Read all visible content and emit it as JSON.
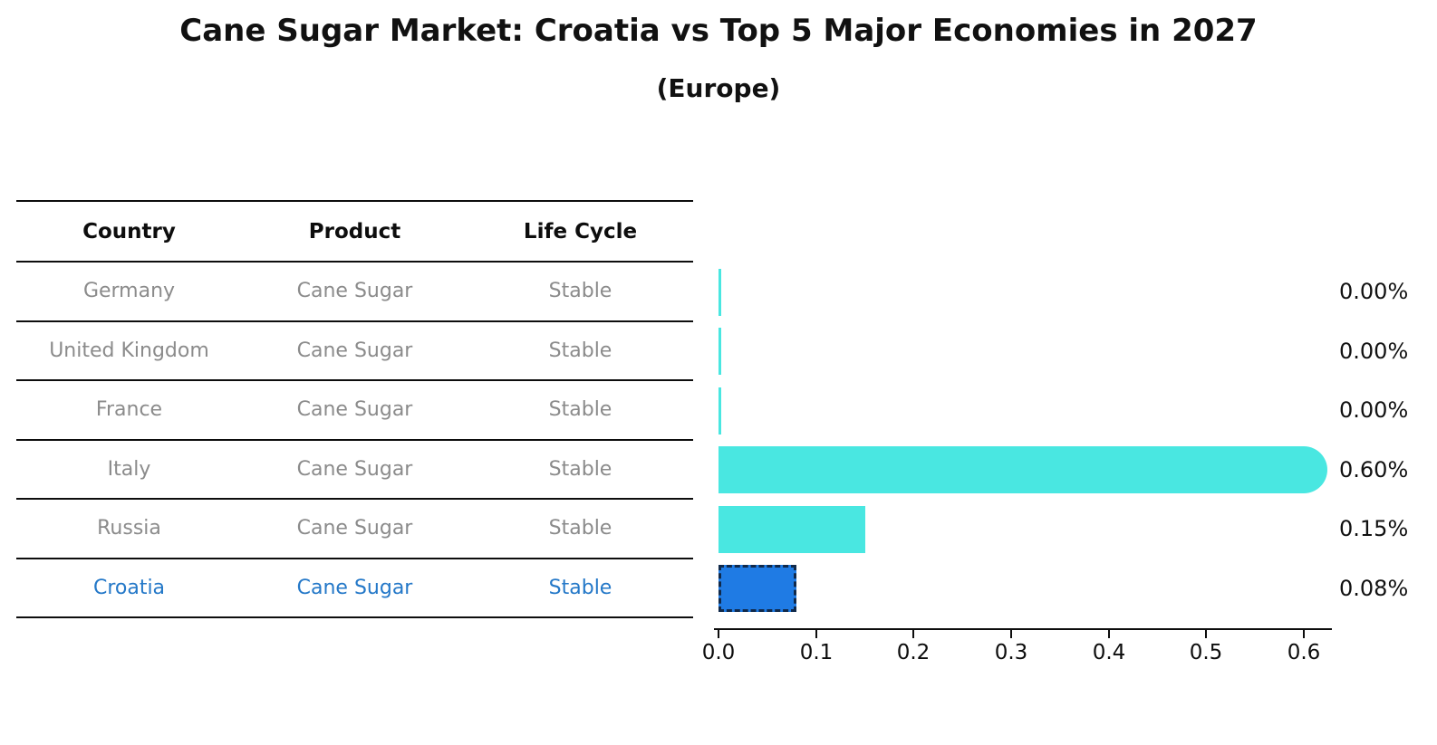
{
  "title": "Cane Sugar Market: Croatia vs Top 5 Major Economies in 2027",
  "subtitle": "(Europe)",
  "table": {
    "headers": [
      "Country",
      "Product",
      "Life Cycle"
    ],
    "rows": [
      {
        "country": "Germany",
        "product": "Cane Sugar",
        "life_cycle": "Stable"
      },
      {
        "country": "United Kingdom",
        "product": "Cane Sugar",
        "life_cycle": "Stable"
      },
      {
        "country": "France",
        "product": "Cane Sugar",
        "life_cycle": "Stable"
      },
      {
        "country": "Italy",
        "product": "Cane Sugar",
        "life_cycle": "Stable"
      },
      {
        "country": "Russia",
        "product": "Cane Sugar",
        "life_cycle": "Stable"
      },
      {
        "country": "Croatia",
        "product": "Cane Sugar",
        "life_cycle": "Stable"
      }
    ]
  },
  "chart_data": {
    "type": "bar",
    "orientation": "horizontal",
    "title": "Cane Sugar Market: Croatia vs Top 5 Major Economies in 2027 (Europe)",
    "categories": [
      "Germany",
      "United Kingdom",
      "France",
      "Italy",
      "Russia",
      "Croatia"
    ],
    "values": [
      0.0,
      0.0,
      0.0,
      0.6,
      0.15,
      0.08
    ],
    "value_labels": [
      "0.00%",
      "0.00%",
      "0.00%",
      "0.60%",
      "0.15%",
      "0.08%"
    ],
    "xticks": [
      0.0,
      0.1,
      0.2,
      0.3,
      0.4,
      0.5,
      0.6
    ],
    "xtick_labels": [
      "0.0",
      "0.1",
      "0.2",
      "0.3",
      "0.4",
      "0.5",
      "0.6"
    ],
    "xlim": [
      0.0,
      0.63
    ],
    "grid": false,
    "legend": false,
    "bar_color": "#49E7E1",
    "highlight": {
      "index": 5,
      "country": "Croatia",
      "fill_color": "#1F7BE4",
      "border_color": "#10294A",
      "text_color": "#2478c8"
    },
    "rounded_end_index": 3
  }
}
